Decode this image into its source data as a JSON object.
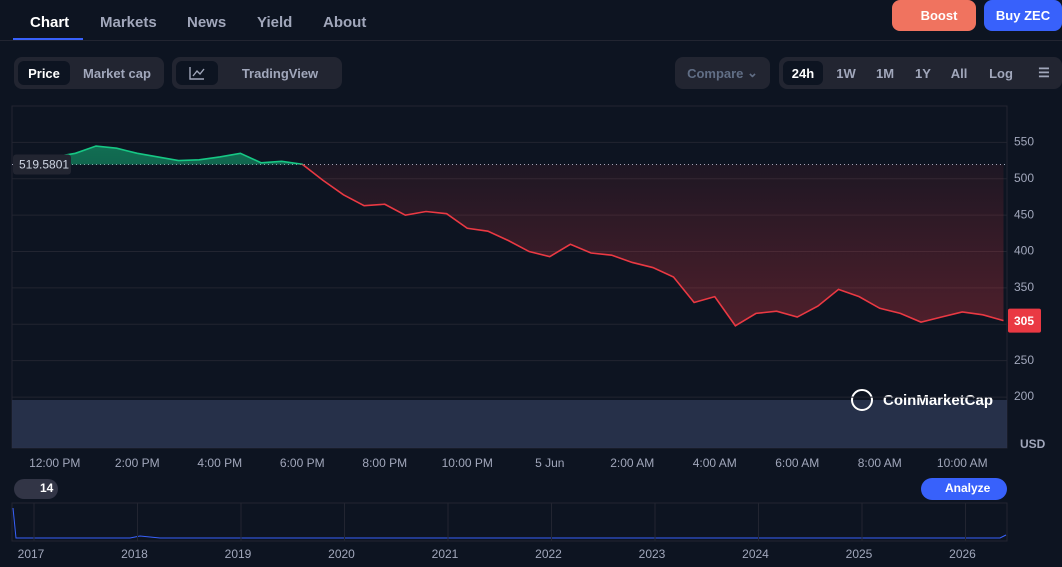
{
  "tabs": [
    "Chart",
    "Markets",
    "News",
    "Yield",
    "About"
  ],
  "header_buttons": {
    "boost": "Boost",
    "buy": "Buy ZEC"
  },
  "view_toggle": [
    "Price",
    "Market cap"
  ],
  "tools": {
    "tradingview": "TradingView"
  },
  "compare": "Compare",
  "ranges": [
    "24h",
    "1W",
    "1M",
    "1Y",
    "All",
    "Log"
  ],
  "chart_data": {
    "type": "line",
    "categories": [
      null,
      null,
      "12:00 PM",
      null,
      null,
      null,
      "2:00 PM",
      null,
      null,
      null,
      "4:00 PM",
      null,
      null,
      null,
      "6:00 PM",
      null,
      null,
      null,
      "8:00 PM",
      null,
      null,
      null,
      "10:00 PM",
      null,
      null,
      null,
      "5 Jun",
      null,
      null,
      null,
      "2:00 AM",
      null,
      null,
      null,
      "4:00 AM",
      null,
      null,
      null,
      "6:00 AM",
      null,
      null,
      null,
      "8:00 AM",
      null,
      null,
      null,
      "10:00 AM",
      null,
      null
    ],
    "series": [
      {
        "name": "ZEC",
        "values": [
          522,
          523,
          530,
          535,
          545,
          542,
          535,
          530,
          525,
          526,
          530,
          535,
          522,
          524,
          520,
          498,
          478,
          463,
          465,
          450,
          455,
          452,
          432,
          428,
          415,
          400,
          393,
          410,
          398,
          395,
          385,
          378,
          365,
          330,
          338,
          298,
          315,
          318,
          310,
          325,
          348,
          338,
          322,
          315,
          303,
          310,
          317,
          313,
          305
        ]
      }
    ],
    "baseline": 519.5801,
    "up_color": "#16c784",
    "down_color": "#ea3943",
    "ylim": [
      130,
      600
    ],
    "yticks": [
      200,
      250,
      300,
      350,
      400,
      450,
      500,
      550
    ],
    "grid": true,
    "y_unit": "USD",
    "watermark": "CoinMarketCap"
  },
  "events_badge": "14",
  "analyze": "Analyze",
  "timeline": {
    "years": [
      "2017",
      "2018",
      "2019",
      "2020",
      "2021",
      "2022",
      "2023",
      "2024",
      "2025",
      "2026"
    ]
  }
}
